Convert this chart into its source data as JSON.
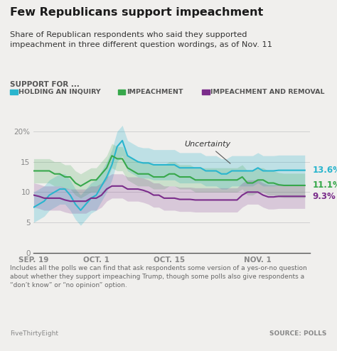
{
  "title": "Few Republicans support impeachment",
  "subtitle": "Share of Republican respondents who said they supported\nimpeachment in three different question wordings, as of Nov. 11",
  "legend_label": "SUPPORT FOR ...",
  "legend_items": [
    "HOLDING AN INQUIRY",
    "IMPEACHMENT",
    "IMPEACHMENT AND REMOVAL"
  ],
  "legend_colors": [
    "#29b5ce",
    "#37a84b",
    "#7b2d8b"
  ],
  "footnote": "Includes all the polls we can find that ask respondents some version of a yes-or-no question\nabout whether they support impeaching Trump, though some polls also give respondents a\n“don’t know” or “no opinion” option.",
  "source_left": "FiveThirtyEight",
  "source_right": "SOURCE: POLLS",
  "uncertainty_label": "Uncertainty",
  "uncertainty_x": 0.63,
  "uncertainty_y": 17.5,
  "x_tick_labels": [
    "SEP. 19",
    "OCT. 1",
    "OCT. 15",
    "NOV. 1"
  ],
  "x_tick_positions": [
    0,
    12,
    26,
    43
  ],
  "y_ticks": [
    0,
    5,
    10,
    15,
    20
  ],
  "y_tick_labels": [
    "0",
    "5",
    "10",
    "15",
    "20%"
  ],
  "ylim": [
    0,
    22
  ],
  "xlim": [
    0,
    53
  ],
  "bg_color": "#f0efed",
  "line_color_inquiry": "#29b5ce",
  "line_color_impeachment": "#37a84b",
  "line_color_removal": "#7b2d8b",
  "fill_color_inquiry": "#29b5ce",
  "fill_color_impeachment": "#37a84b",
  "fill_color_removal": "#7b2d8b",
  "end_label_inquiry": "13.6%",
  "end_label_impeachment": "11.1%",
  "end_label_removal": "9.3%",
  "inquiry_x": [
    0,
    1,
    2,
    3,
    4,
    5,
    6,
    7,
    8,
    9,
    10,
    11,
    12,
    13,
    14,
    15,
    16,
    17,
    18,
    19,
    20,
    21,
    22,
    23,
    24,
    25,
    26,
    27,
    28,
    29,
    30,
    31,
    32,
    33,
    34,
    35,
    36,
    37,
    38,
    39,
    40,
    41,
    42,
    43,
    44,
    45,
    46,
    47,
    48,
    49,
    50,
    51,
    52
  ],
  "inquiry_y": [
    7.5,
    8.0,
    8.5,
    9.5,
    10.0,
    10.5,
    10.5,
    9.5,
    8.0,
    7.0,
    8.0,
    9.0,
    9.5,
    11.0,
    12.5,
    14.5,
    17.5,
    18.5,
    16.0,
    15.5,
    15.0,
    14.8,
    14.8,
    14.5,
    14.5,
    14.5,
    14.5,
    14.5,
    14.0,
    14.0,
    14.0,
    14.0,
    14.0,
    13.5,
    13.5,
    13.5,
    13.0,
    13.0,
    13.5,
    13.5,
    13.5,
    13.5,
    13.5,
    14.0,
    13.5,
    13.5,
    13.5,
    13.6,
    13.6,
    13.6,
    13.6,
    13.6,
    13.6
  ],
  "inquiry_lo": [
    5.0,
    5.5,
    6.0,
    7.0,
    7.5,
    8.0,
    8.0,
    7.0,
    5.5,
    4.5,
    5.5,
    6.5,
    7.0,
    8.5,
    10.0,
    12.0,
    15.0,
    16.0,
    13.5,
    13.0,
    12.5,
    12.3,
    12.3,
    12.0,
    12.0,
    12.0,
    12.0,
    12.0,
    11.5,
    11.5,
    11.5,
    11.5,
    11.5,
    11.0,
    11.0,
    11.0,
    10.5,
    10.5,
    11.0,
    11.0,
    11.0,
    11.0,
    11.0,
    11.5,
    11.0,
    11.0,
    11.0,
    11.1,
    11.1,
    11.1,
    11.1,
    11.1,
    11.1
  ],
  "inquiry_hi": [
    10.0,
    10.5,
    11.0,
    12.0,
    12.5,
    13.0,
    13.0,
    12.0,
    10.5,
    9.5,
    10.5,
    11.5,
    12.0,
    13.5,
    15.0,
    17.0,
    20.0,
    21.0,
    18.5,
    18.0,
    17.5,
    17.3,
    17.3,
    17.0,
    17.0,
    17.0,
    17.0,
    17.0,
    16.5,
    16.5,
    16.5,
    16.5,
    16.5,
    16.0,
    16.0,
    16.0,
    15.5,
    15.5,
    16.0,
    16.0,
    16.0,
    16.0,
    16.0,
    16.5,
    16.0,
    16.0,
    16.0,
    16.1,
    16.1,
    16.1,
    16.1,
    16.1,
    16.1
  ],
  "impeach_x": [
    0,
    1,
    2,
    3,
    4,
    5,
    6,
    7,
    8,
    9,
    10,
    11,
    12,
    13,
    14,
    15,
    16,
    17,
    18,
    19,
    20,
    21,
    22,
    23,
    24,
    25,
    26,
    27,
    28,
    29,
    30,
    31,
    32,
    33,
    34,
    35,
    36,
    37,
    38,
    39,
    40,
    41,
    42,
    43,
    44,
    45,
    46,
    47,
    48,
    49,
    50,
    51,
    52
  ],
  "impeach_y": [
    13.5,
    13.5,
    13.5,
    13.5,
    13.0,
    13.0,
    12.5,
    12.5,
    11.5,
    11.0,
    11.5,
    12.0,
    12.0,
    13.0,
    14.0,
    16.0,
    15.5,
    15.5,
    14.0,
    13.5,
    13.0,
    13.0,
    13.0,
    12.5,
    12.5,
    12.5,
    13.0,
    13.0,
    12.5,
    12.5,
    12.5,
    12.0,
    12.0,
    12.0,
    12.0,
    12.0,
    12.0,
    12.0,
    12.0,
    12.0,
    12.5,
    11.5,
    11.5,
    12.0,
    12.0,
    11.5,
    11.5,
    11.2,
    11.1,
    11.1,
    11.1,
    11.1,
    11.1
  ],
  "impeach_lo": [
    11.5,
    11.5,
    11.5,
    11.5,
    11.0,
    11.0,
    10.5,
    10.5,
    9.5,
    9.0,
    9.5,
    10.0,
    10.0,
    11.0,
    12.0,
    14.0,
    13.5,
    13.5,
    12.0,
    11.5,
    11.0,
    11.0,
    11.0,
    10.5,
    10.5,
    10.5,
    11.0,
    11.0,
    10.5,
    10.5,
    10.5,
    10.0,
    10.0,
    10.0,
    10.0,
    10.0,
    10.0,
    10.0,
    10.0,
    10.0,
    10.5,
    9.5,
    9.5,
    10.0,
    10.0,
    9.5,
    9.5,
    9.2,
    9.1,
    9.1,
    9.1,
    9.1,
    9.1
  ],
  "impeach_hi": [
    15.5,
    15.5,
    15.5,
    15.5,
    15.0,
    15.0,
    14.5,
    14.5,
    13.5,
    13.0,
    13.5,
    14.0,
    14.0,
    15.0,
    16.0,
    18.0,
    17.5,
    17.5,
    16.0,
    15.5,
    15.0,
    15.0,
    15.0,
    14.5,
    14.5,
    14.5,
    15.0,
    15.0,
    14.5,
    14.5,
    14.5,
    14.0,
    14.0,
    14.0,
    14.0,
    14.0,
    14.0,
    14.0,
    14.0,
    14.0,
    14.5,
    13.5,
    13.5,
    14.0,
    14.0,
    13.5,
    13.5,
    13.2,
    13.1,
    13.1,
    13.1,
    13.1,
    13.1
  ],
  "removal_x": [
    0,
    1,
    2,
    3,
    4,
    5,
    6,
    7,
    8,
    9,
    10,
    11,
    12,
    13,
    14,
    15,
    16,
    17,
    18,
    19,
    20,
    21,
    22,
    23,
    24,
    25,
    26,
    27,
    28,
    29,
    30,
    31,
    32,
    33,
    34,
    35,
    36,
    37,
    38,
    39,
    40,
    41,
    42,
    43,
    44,
    45,
    46,
    47,
    48,
    49,
    50,
    51,
    52
  ],
  "removal_y": [
    9.5,
    9.3,
    9.0,
    9.0,
    9.0,
    9.0,
    8.7,
    8.5,
    8.5,
    8.5,
    8.5,
    9.0,
    9.0,
    9.5,
    10.5,
    11.0,
    11.0,
    11.0,
    10.5,
    10.5,
    10.5,
    10.3,
    10.0,
    9.5,
    9.5,
    9.0,
    9.0,
    9.0,
    8.8,
    8.8,
    8.8,
    8.7,
    8.7,
    8.7,
    8.7,
    8.7,
    8.7,
    8.7,
    8.7,
    8.7,
    9.5,
    10.0,
    10.0,
    10.0,
    9.5,
    9.2,
    9.2,
    9.3,
    9.3,
    9.3,
    9.3,
    9.3,
    9.3
  ],
  "removal_lo": [
    7.5,
    7.3,
    7.0,
    7.0,
    7.0,
    7.0,
    6.7,
    6.5,
    6.5,
    6.5,
    6.5,
    7.0,
    7.0,
    7.5,
    8.5,
    9.0,
    9.0,
    9.0,
    8.5,
    8.5,
    8.5,
    8.3,
    8.0,
    7.5,
    7.5,
    7.0,
    7.0,
    7.0,
    6.8,
    6.8,
    6.8,
    6.7,
    6.7,
    6.7,
    6.7,
    6.7,
    6.7,
    6.7,
    6.7,
    6.7,
    7.5,
    8.0,
    8.0,
    8.0,
    7.5,
    7.2,
    7.2,
    7.3,
    7.3,
    7.3,
    7.3,
    7.3,
    7.3
  ],
  "removal_hi": [
    11.5,
    11.3,
    11.0,
    11.0,
    11.0,
    11.0,
    10.7,
    10.5,
    10.5,
    10.5,
    10.5,
    11.0,
    11.0,
    11.5,
    12.5,
    13.0,
    13.0,
    13.0,
    12.5,
    12.5,
    12.5,
    12.3,
    12.0,
    11.5,
    11.5,
    11.0,
    11.0,
    11.0,
    10.8,
    10.8,
    10.8,
    10.7,
    10.7,
    10.7,
    10.7,
    10.7,
    10.7,
    10.7,
    10.7,
    10.7,
    11.5,
    12.0,
    12.0,
    12.0,
    11.5,
    11.2,
    11.2,
    11.3,
    11.3,
    11.3,
    11.3,
    11.3,
    11.3
  ]
}
